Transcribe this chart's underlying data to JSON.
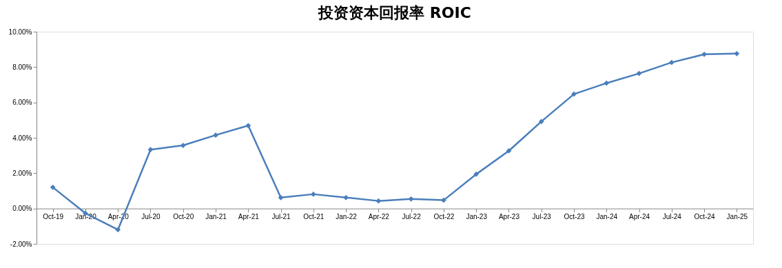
{
  "chart_data": {
    "type": "line",
    "title": "投资资本回报率 ROIC",
    "categories": [
      "Oct-19",
      "Jan-20",
      "Apr-20",
      "Jul-20",
      "Oct-20",
      "Jan-21",
      "Apr-21",
      "Jul-21",
      "Oct-21",
      "Jan-22",
      "Apr-22",
      "Jul-22",
      "Oct-22",
      "Jan-23",
      "Apr-23",
      "Jul-23",
      "Oct-23",
      "Jan-24",
      "Apr-24",
      "Jul-24",
      "Oct-24",
      "Jan-25"
    ],
    "series": [
      {
        "color": "#4a7ebb",
        "values": [
          1.2,
          -0.27,
          -1.2,
          3.33,
          3.57,
          4.15,
          4.69,
          0.62,
          0.81,
          0.62,
          0.43,
          0.54,
          0.47,
          1.94,
          3.26,
          4.92,
          6.47,
          7.09,
          7.64,
          8.26,
          8.72,
          8.76
        ]
      }
    ],
    "ylim": [
      -2,
      10
    ],
    "yticks": [
      {
        "value": -2,
        "label": "-2.00%"
      },
      {
        "value": 0,
        "label": "0.00%"
      },
      {
        "value": 2,
        "label": "2.00%"
      },
      {
        "value": 4,
        "label": "4.00%"
      },
      {
        "value": 6,
        "label": "6.00%"
      },
      {
        "value": 8,
        "label": "8.00%"
      },
      {
        "value": 10,
        "label": "10.00%"
      }
    ],
    "grid": false,
    "marker": "diamond",
    "line_style": "solid"
  }
}
